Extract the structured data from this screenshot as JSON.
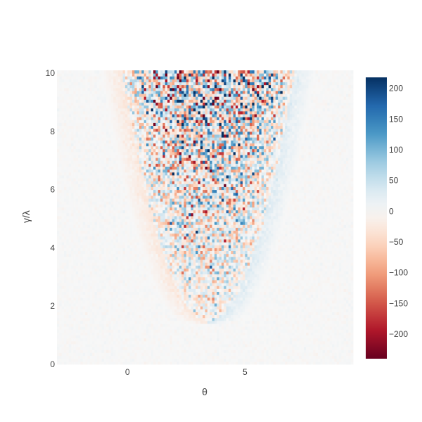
{
  "chart_data": {
    "type": "heatmap",
    "title": "",
    "xlabel": "θ",
    "ylabel": "γ/λ",
    "xlim": [
      -3,
      9.6
    ],
    "ylim": [
      0,
      10.1
    ],
    "x_ticks": [
      0,
      5
    ],
    "y_ticks": [
      0,
      2,
      4,
      6,
      8,
      10
    ],
    "colorscale": "RdBu",
    "colors": {
      "max": "#053061",
      "high": "#2166ac",
      "mid_high": "#4393c3",
      "low_pos": "#92c5de",
      "near_zero_pos": "#d1e5f0",
      "zero": "#f7f7f7",
      "near_zero_neg": "#fddbc7",
      "low_neg": "#f4a582",
      "mid_low": "#d6604d",
      "low": "#b2182b",
      "min": "#67001f"
    },
    "colorbar": {
      "min": -240,
      "max": 218,
      "ticks": [
        200,
        150,
        100,
        50,
        0,
        -50,
        -100,
        -150,
        -200
      ]
    },
    "grid": {
      "x_start": -3,
      "x_step": 0.1,
      "nx": 126,
      "y_start": 0,
      "y_step": 0.1,
      "ny": 101
    },
    "pattern": {
      "center_x": 3.4,
      "parabola_min_y": 1.4,
      "description": "z values fluctuate within a parabolic region; outside the region z ≈ 0"
    }
  }
}
